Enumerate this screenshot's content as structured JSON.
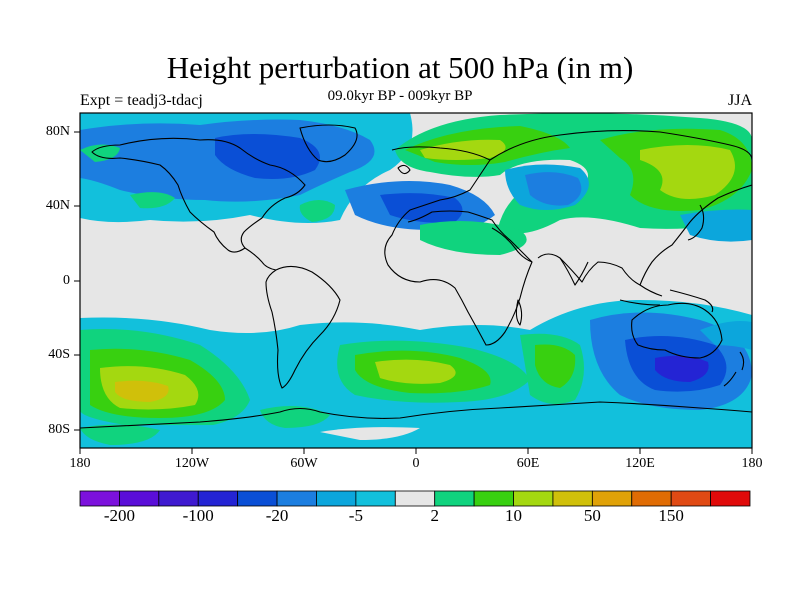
{
  "title": "Height perturbation at 500 hPa (in m)",
  "subtitle": "09.0kyr BP - 009kyr BP",
  "left_label": "Expt = teadj3-tdacj",
  "right_label": "JJA",
  "lat_ticks": [
    "80N",
    "40N",
    "0",
    "40S",
    "80S"
  ],
  "lon_ticks": [
    "180",
    "120W",
    "60W",
    "0",
    "60E",
    "120E",
    "180"
  ],
  "colorbar": {
    "colors": [
      "#7c11dc",
      "#5a0ed8",
      "#3f1ad0",
      "#2424d4",
      "#0a4fd6",
      "#1c7ee0",
      "#0ca6dc",
      "#12c0dc",
      "#e6e6e6",
      "#10d37e",
      "#38d010",
      "#a4d810",
      "#d0c00a",
      "#e0a208",
      "#e06c04",
      "#e04a14",
      "#e00a0a"
    ],
    "tick_labels": [
      "-200",
      "-100",
      "-20",
      "-5",
      "2",
      "10",
      "50",
      "150"
    ],
    "tick_boundaries": [
      1,
      3,
      5,
      7,
      9,
      11,
      13,
      15
    ]
  },
  "map": {
    "lon_range": [
      -180,
      180
    ],
    "lat_range": [
      -90,
      90
    ],
    "background": "#e6e6e6"
  }
}
